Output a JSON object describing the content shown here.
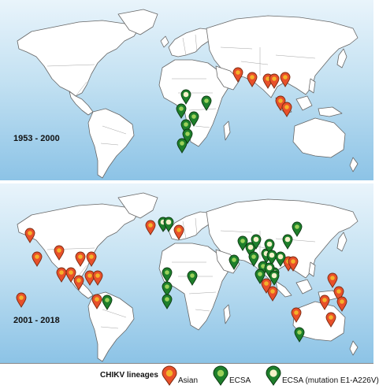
{
  "colors": {
    "asian_fill": "#e8502a",
    "asian_core": "#f4b22a",
    "ecsa_fill": "#1e7f2b",
    "ecsa_core": "#9bd15a",
    "mutation_fill": "#1e7f2b",
    "mutation_core": "#f6f1c9",
    "ocean_top": "#e9f4fb",
    "ocean_bottom": "#8cc3e6"
  },
  "panels": [
    {
      "id": "top",
      "period": "1953 - 2000"
    },
    {
      "id": "bottom",
      "period": "2001 - 2018"
    }
  ],
  "legend": {
    "title": "CHIKV lineages",
    "items": [
      {
        "key": "asian",
        "label": "Asian"
      },
      {
        "key": "ecsa",
        "label": "ECSA"
      },
      {
        "key": "mutation",
        "label": "ECSA (mutation E1-A226V)"
      }
    ]
  },
  "markers": {
    "top": [
      {
        "lineage": "asian",
        "location": "India"
      },
      {
        "lineage": "asian",
        "location": "Myanmar"
      },
      {
        "lineage": "asian",
        "location": "Thailand"
      },
      {
        "lineage": "asian",
        "location": "Cambodia"
      },
      {
        "lineage": "asian",
        "location": "Philippines"
      },
      {
        "lineage": "asian",
        "location": "Malaysia"
      },
      {
        "lineage": "asian",
        "location": "Indonesia"
      },
      {
        "lineage": "mutation",
        "location": "Sudan"
      },
      {
        "lineage": "ecsa",
        "location": "Ethiopia"
      },
      {
        "lineage": "ecsa",
        "location": "Central Africa"
      },
      {
        "lineage": "ecsa",
        "location": "Kenya"
      },
      {
        "lineage": "ecsa",
        "location": "Tanzania"
      },
      {
        "lineage": "ecsa",
        "location": "Zimbabwe"
      },
      {
        "lineage": "ecsa",
        "location": "South Africa"
      }
    ],
    "bottom": [
      {
        "lineage": "asian",
        "location": "USA"
      },
      {
        "lineage": "asian",
        "location": "Mexico"
      },
      {
        "lineage": "asian",
        "location": "Honduras"
      },
      {
        "lineage": "asian",
        "location": "Cuba"
      },
      {
        "lineage": "asian",
        "location": "Caribbean"
      },
      {
        "lineage": "asian",
        "location": "Costa Rica"
      },
      {
        "lineage": "asian",
        "location": "Panama"
      },
      {
        "lineage": "asian",
        "location": "Colombia"
      },
      {
        "lineage": "asian",
        "location": "Venezuela"
      },
      {
        "lineage": "asian",
        "location": "Guyana"
      },
      {
        "lineage": "asian",
        "location": "Peru"
      },
      {
        "lineage": "ecsa",
        "location": "Brazil"
      },
      {
        "lineage": "asian",
        "location": "Pacific Ocean"
      },
      {
        "lineage": "asian",
        "location": "Spain"
      },
      {
        "lineage": "mutation",
        "location": "France"
      },
      {
        "lineage": "mutation",
        "location": "Italy"
      },
      {
        "lineage": "asian",
        "location": "Greece"
      },
      {
        "lineage": "ecsa",
        "location": "Cameroon"
      },
      {
        "lineage": "ecsa",
        "location": "Congo"
      },
      {
        "lineage": "ecsa",
        "location": "Angola"
      },
      {
        "lineage": "ecsa",
        "location": "Ethiopia"
      },
      {
        "lineage": "ecsa",
        "location": "Pakistan"
      },
      {
        "lineage": "mutation",
        "location": "India"
      },
      {
        "lineage": "mutation",
        "location": "Bhutan"
      },
      {
        "lineage": "ecsa",
        "location": "Nepal"
      },
      {
        "lineage": "ecsa",
        "location": "Myanmar"
      },
      {
        "lineage": "mutation",
        "location": "Thailand"
      },
      {
        "lineage": "mutation",
        "location": "Laos"
      },
      {
        "lineage": "ecsa",
        "location": "Cambodia"
      },
      {
        "lineage": "mutation",
        "location": "Vietnam"
      },
      {
        "lineage": "mutation",
        "location": "China"
      },
      {
        "lineage": "mutation",
        "location": "Korea"
      },
      {
        "lineage": "ecsa",
        "location": "Japan"
      },
      {
        "lineage": "asian",
        "location": "Japan South"
      },
      {
        "lineage": "mutation",
        "location": "Taiwan"
      },
      {
        "lineage": "ecsa",
        "location": "Malaysia"
      },
      {
        "lineage": "asian",
        "location": "Philippines"
      },
      {
        "lineage": "mutation",
        "location": "Sri Lanka"
      },
      {
        "lineage": "mutation",
        "location": "Maldives"
      },
      {
        "lineage": "asian",
        "location": "Singapore"
      },
      {
        "lineage": "asian",
        "location": "Indonesia"
      },
      {
        "lineage": "asian",
        "location": "Papua New Guinea"
      },
      {
        "lineage": "asian",
        "location": "Micronesia"
      },
      {
        "lineage": "asian",
        "location": "Pacific Islands"
      },
      {
        "lineage": "asian",
        "location": "French Polynesia"
      },
      {
        "lineage": "asian",
        "location": "Samoa"
      },
      {
        "lineage": "asian",
        "location": "New Caledonia"
      },
      {
        "lineage": "ecsa",
        "location": "Australia"
      }
    ]
  }
}
